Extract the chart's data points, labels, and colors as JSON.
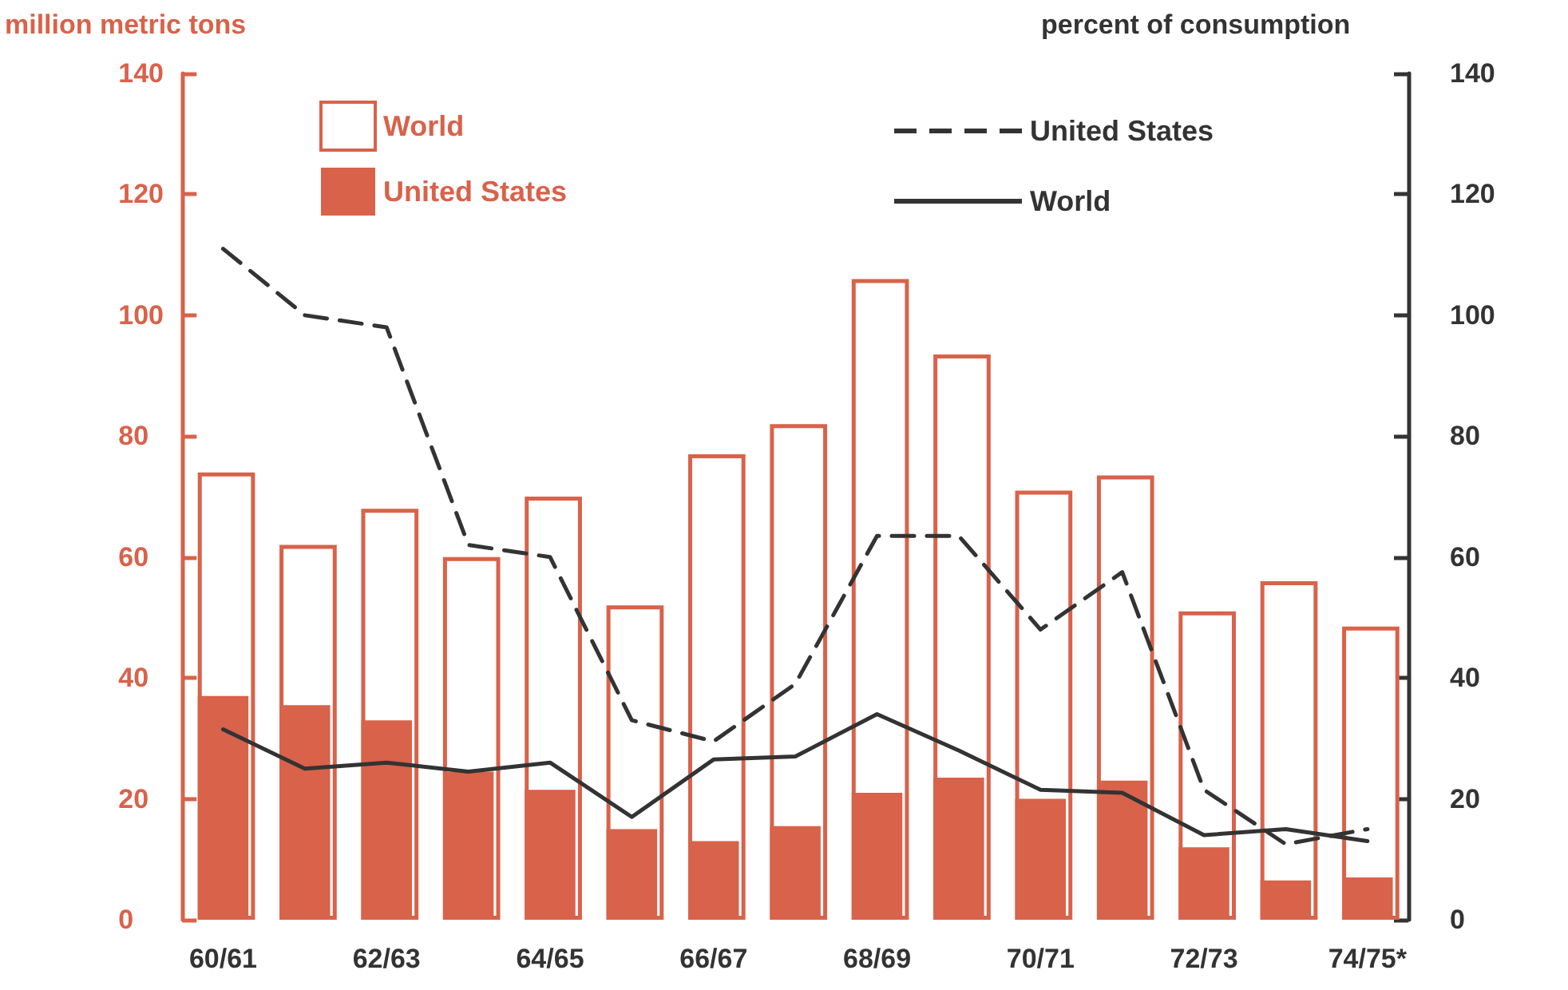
{
  "chart_data": {
    "type": "bar",
    "ylabel": "million metric tons",
    "y2label": "percent of consumption",
    "categories": [
      "60/61",
      null,
      "62/63",
      null,
      "64/65",
      null,
      "66/67",
      null,
      "68/69",
      null,
      "70/71",
      null,
      "72/73",
      null,
      "74/75*"
    ],
    "series": [
      {
        "name": "World",
        "color": "#d9624a",
        "values": [
          74,
          62,
          68,
          60,
          70,
          52,
          77,
          82,
          106,
          93.5,
          71,
          73.5,
          51,
          56,
          48.5
        ]
      },
      {
        "name": "United States",
        "color": "#d9624a",
        "values": [
          37,
          35.5,
          33,
          24.5,
          21.5,
          15,
          13,
          15.5,
          21,
          23.5,
          20,
          23,
          12,
          6.5,
          7
        ]
      },
      {
        "name": "United States",
        "type": "line",
        "axis": "y2",
        "color": "#333333",
        "line_style": "dashed",
        "values": [
          111,
          100,
          98,
          62,
          60,
          33,
          29.5,
          39,
          63.5,
          63.5,
          48,
          57.5,
          21.5,
          12.5,
          15
        ]
      },
      {
        "name": "World",
        "type": "line",
        "axis": "y2",
        "color": "#333333",
        "line_style": "solid",
        "values": [
          31.5,
          25,
          26,
          24.5,
          26,
          17,
          26.5,
          27,
          34,
          28,
          21.5,
          21,
          14,
          15,
          13
        ]
      }
    ],
    "ylim": [
      0,
      140
    ],
    "yticks": [
      0,
      20,
      40,
      60,
      80,
      100,
      120,
      140
    ],
    "y2lim": [
      0,
      140
    ],
    "y2ticks": [
      0,
      20,
      40,
      60,
      80,
      100,
      120,
      140
    ],
    "grid": false,
    "legend": "top",
    "marker": "none"
  }
}
